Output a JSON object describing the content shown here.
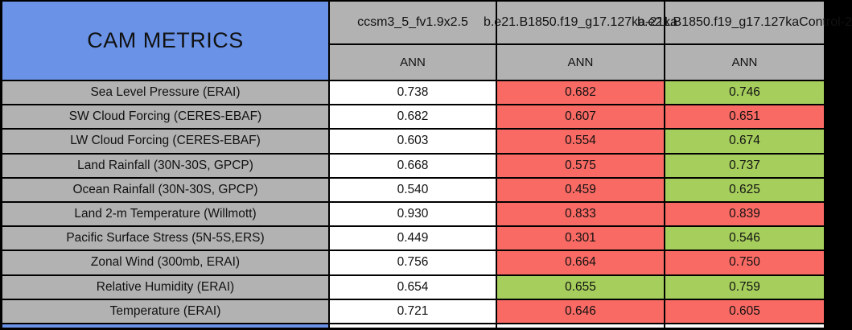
{
  "chart_data": {
    "type": "table",
    "title": "CAM METRICS",
    "columns": [
      {
        "name": "ccsm3_5_fv1.9x2.5",
        "season": "ANN"
      },
      {
        "name": "b.e21.B1850.f19_g17.127ka-21ka",
        "season": "ANN"
      },
      {
        "name": "b.e21.B1850.f19_g17.127kaControl-2",
        "season": "ANN"
      }
    ],
    "rows": [
      {
        "metric": "Sea Level Pressure (ERAI)",
        "values": [
          "0.738",
          "0.682",
          "0.746"
        ],
        "cell_colors": [
          "white",
          "red",
          "green"
        ]
      },
      {
        "metric": "SW Cloud Forcing (CERES-EBAF)",
        "values": [
          "0.682",
          "0.607",
          "0.651"
        ],
        "cell_colors": [
          "white",
          "red",
          "red"
        ]
      },
      {
        "metric": "LW Cloud Forcing (CERES-EBAF)",
        "values": [
          "0.603",
          "0.554",
          "0.674"
        ],
        "cell_colors": [
          "white",
          "red",
          "green"
        ]
      },
      {
        "metric": "Land Rainfall (30N-30S, GPCP)",
        "values": [
          "0.668",
          "0.575",
          "0.737"
        ],
        "cell_colors": [
          "white",
          "red",
          "green"
        ]
      },
      {
        "metric": "Ocean Rainfall (30N-30S, GPCP)",
        "values": [
          "0.540",
          "0.459",
          "0.625"
        ],
        "cell_colors": [
          "white",
          "red",
          "green"
        ]
      },
      {
        "metric": "Land 2-m Temperature (Willmott)",
        "values": [
          "0.930",
          "0.833",
          "0.839"
        ],
        "cell_colors": [
          "white",
          "red",
          "red"
        ]
      },
      {
        "metric": "Pacific Surface Stress (5N-5S,ERS)",
        "values": [
          "0.449",
          "0.301",
          "0.546"
        ],
        "cell_colors": [
          "white",
          "red",
          "green"
        ]
      },
      {
        "metric": "Zonal Wind (300mb, ERAI)",
        "values": [
          "0.756",
          "0.664",
          "0.750"
        ],
        "cell_colors": [
          "white",
          "red",
          "red"
        ]
      },
      {
        "metric": "Relative Humidity (ERAI)",
        "values": [
          "0.654",
          "0.655",
          "0.759"
        ],
        "cell_colors": [
          "white",
          "green",
          "green"
        ]
      },
      {
        "metric": "Temperature (ERAI)",
        "values": [
          "0.721",
          "0.646",
          "0.605"
        ],
        "cell_colors": [
          "white",
          "red",
          "red"
        ]
      }
    ],
    "cell_color_map": {
      "white": "#ffffff",
      "red": "#fa6a64",
      "green": "#a6ce5c"
    },
    "layout_colors": {
      "section_title_blue": "#6a93e8",
      "header_gray": "#b2b2b2",
      "border_black": "#000000"
    }
  }
}
